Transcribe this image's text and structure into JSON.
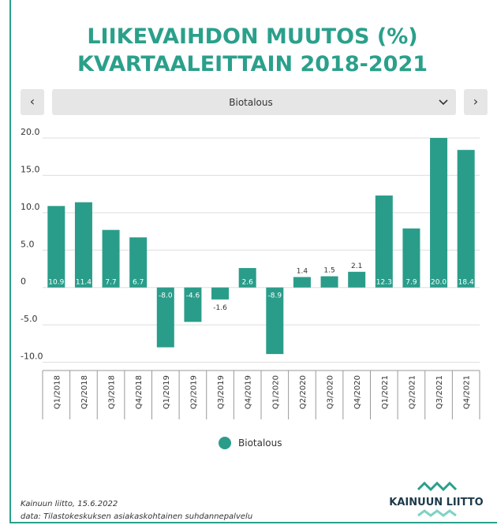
{
  "chart_data": {
    "type": "bar",
    "title": [
      "LIIKEVAIHDON MUUTOS (%)",
      "KVARTAALEITTAIN 2018-2021"
    ],
    "controls": {
      "prev": "‹",
      "dropdown": "Biotalous",
      "next": "›"
    },
    "categories": [
      "Q1/2018",
      "Q2/2018",
      "Q3/2018",
      "Q4/2018",
      "Q1/2019",
      "Q2/2019",
      "Q3/2019",
      "Q4/2019",
      "Q1/2020",
      "Q2/2020",
      "Q3/2020",
      "Q4/2020",
      "Q1/2021",
      "Q2/2021",
      "Q3/2021",
      "Q4/2021"
    ],
    "series": [
      {
        "name": "Biotalous",
        "color": "#2a9d8a",
        "values": [
          10.9,
          11.4,
          7.7,
          6.7,
          -8.0,
          -4.6,
          -1.6,
          2.6,
          -8.9,
          1.4,
          1.5,
          2.1,
          12.3,
          7.9,
          20.0,
          18.4
        ],
        "value_labels": [
          "10.9",
          "11.4",
          "7.7",
          "6.7",
          "-8.0",
          "-4.6",
          "-1.6",
          "2.6",
          "-8.9",
          "1.4",
          "1.5",
          "2.1",
          "12.3",
          "7.9",
          "20.0",
          "18.4"
        ]
      }
    ],
    "ylim": [
      -11.1,
      20
    ],
    "yticks": [
      {
        "value": 20,
        "label": "20.0"
      },
      {
        "value": 15,
        "label": "15.0"
      },
      {
        "value": 10,
        "label": "10.0"
      },
      {
        "value": 5,
        "label": "5.0"
      },
      0,
      {
        "value": -5,
        "label": "-5.0"
      },
      {
        "value": -10,
        "label": "-10.0"
      }
    ],
    "grid": true,
    "footer": [
      "Kainuun liitto, 15.6.2022",
      "data: Tilastokeskuksen asiakaskohtainen suhdannepalvelu"
    ],
    "logo": "KAINUUN LIITTO"
  }
}
